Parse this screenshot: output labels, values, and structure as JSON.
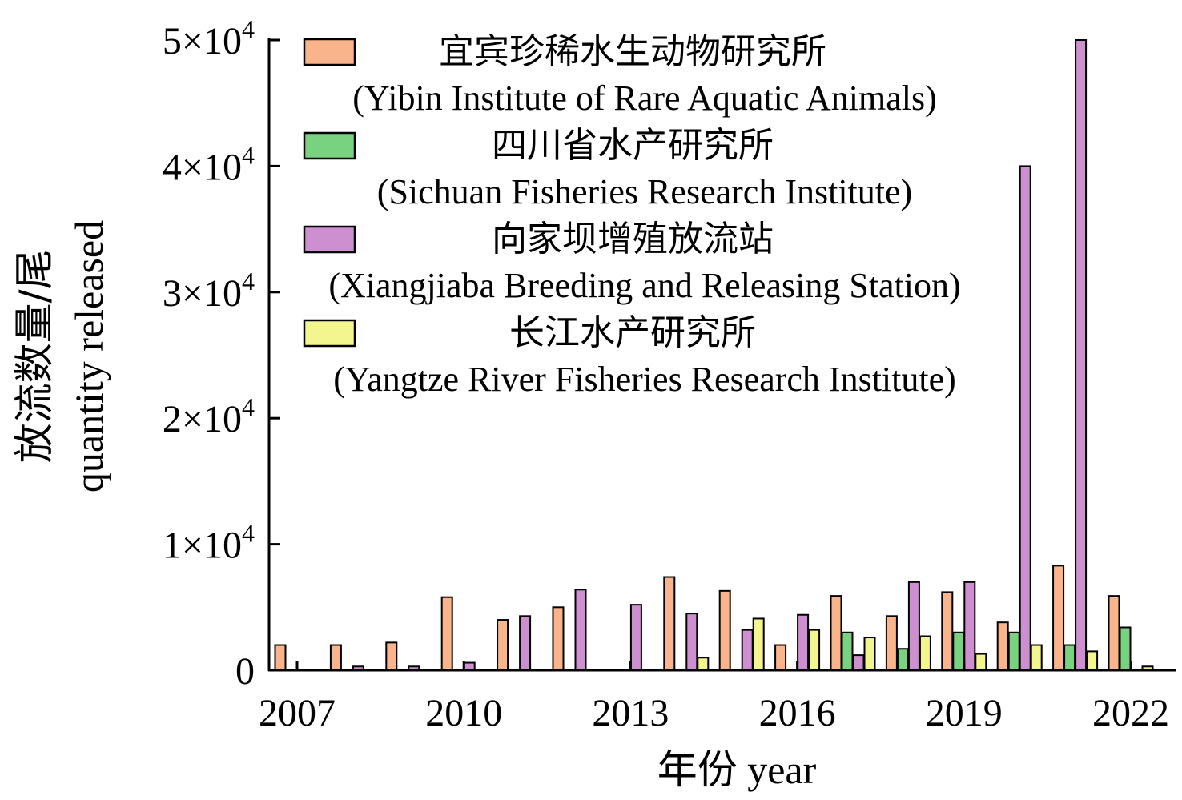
{
  "chart_data": {
    "type": "bar",
    "xlabel": "年份 year",
    "ylabel_cn": "放流数量/尾",
    "ylabel_en": "quantity released",
    "x_tick_labels": [
      "2007",
      "2010",
      "2013",
      "2016",
      "2019",
      "2022"
    ],
    "y_tick_labels": [
      {
        "value": 0,
        "mantissa": "0",
        "exp": ""
      },
      {
        "value": 10000,
        "mantissa": "1×10",
        "exp": "4"
      },
      {
        "value": 20000,
        "mantissa": "2×10",
        "exp": "4"
      },
      {
        "value": 30000,
        "mantissa": "3×10",
        "exp": "4"
      },
      {
        "value": 40000,
        "mantissa": "4×10",
        "exp": "4"
      },
      {
        "value": 50000,
        "mantissa": "5×10",
        "exp": "4"
      }
    ],
    "ylim": [
      0,
      50000
    ],
    "grid": false,
    "legend_position": "top",
    "categories": [
      "2007",
      "2008",
      "2009",
      "2010",
      "2011",
      "2012",
      "2013",
      "2014",
      "2015",
      "2016",
      "2017",
      "2018",
      "2019",
      "2020",
      "2021",
      "2022"
    ],
    "series": [
      {
        "name_cn": "宜宾珍稀水生动物研究所",
        "name_en": "(Yibin Institute of Rare Aquatic Animals)",
        "color": "#F9B48B",
        "values": [
          2000,
          2000,
          2200,
          5800,
          4000,
          5000,
          0,
          7400,
          6300,
          2000,
          5900,
          4300,
          6200,
          3800,
          8300,
          5900
        ]
      },
      {
        "name_cn": "四川省水产研究所",
        "name_en": "(Sichuan Fisheries Research Institute)",
        "color": "#79D27F",
        "values": [
          0,
          0,
          0,
          0,
          0,
          0,
          0,
          0,
          0,
          0,
          3000,
          1700,
          3000,
          3000,
          2000,
          3400
        ]
      },
      {
        "name_cn": "向家坝增殖放流站",
        "name_en": "(Xiangjiaba Breeding and Releasing Station)",
        "color": "#CD8FD0",
        "values": [
          0,
          300,
          300,
          600,
          4300,
          6400,
          5200,
          4500,
          3200,
          4400,
          1200,
          7000,
          7000,
          40000,
          50000,
          0
        ]
      },
      {
        "name_cn": "长江水产研究所",
        "name_en": "(Yangtze River Fisheries Research Institute)",
        "color": "#F3F58E",
        "values": [
          0,
          0,
          0,
          0,
          0,
          0,
          0,
          1000,
          4100,
          3200,
          2600,
          2700,
          1300,
          2000,
          1500,
          300
        ]
      }
    ]
  }
}
